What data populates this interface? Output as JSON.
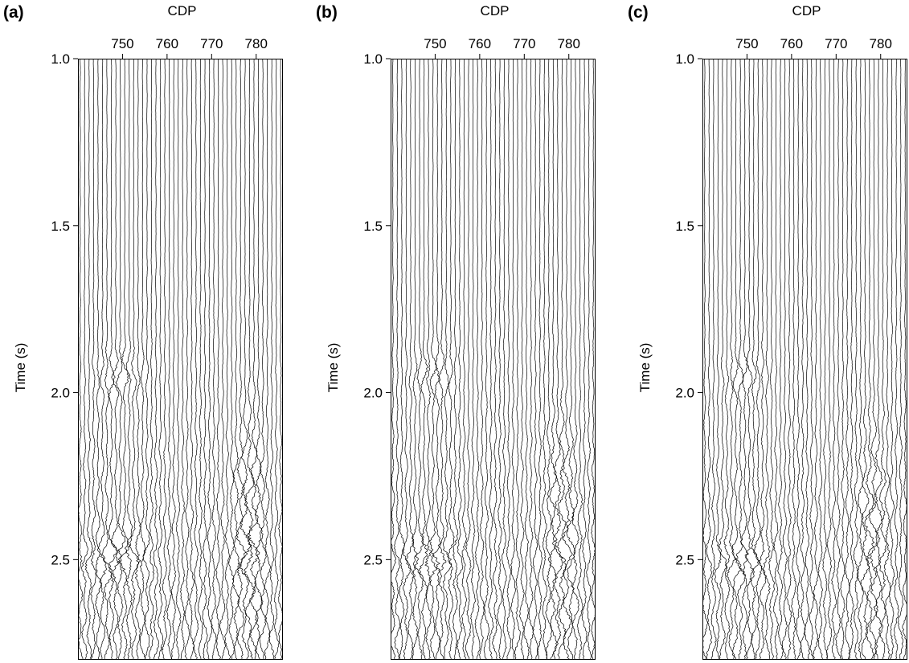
{
  "colors": {
    "trace": "#000000",
    "frame": "#000000",
    "background": "#ffffff"
  },
  "chart_data": [
    {
      "type": "seismic-wiggle",
      "panel_label": "(a)",
      "xlabel": "CDP",
      "ylabel": "Time (s)",
      "xticks": [
        750,
        760,
        770,
        780
      ],
      "xlim": [
        740,
        786
      ],
      "yticks": [
        1.0,
        1.5,
        2.0,
        2.5
      ],
      "ytick_labels": [
        "1.0",
        "1.5",
        "2.0",
        "2.5"
      ],
      "ylim": [
        1.0,
        2.8
      ],
      "grid": false,
      "anomalies": [
        {
          "cdp_range": [
            744,
            755
          ],
          "time_range": [
            1.85,
            2.05
          ],
          "strength": 0.75
        },
        {
          "cdp_range": [
            741,
            757
          ],
          "time_range": [
            2.4,
            2.6
          ],
          "strength": 0.9
        },
        {
          "cdp_range": [
            775,
            782
          ],
          "time_range": [
            2.05,
            2.8
          ],
          "strength": 0.85
        }
      ]
    },
    {
      "type": "seismic-wiggle",
      "panel_label": "(b)",
      "xlabel": "CDP",
      "ylabel": "Time (s)",
      "xticks": [
        750,
        760,
        770,
        780
      ],
      "xlim": [
        740,
        786
      ],
      "yticks": [
        1.0,
        1.5,
        2.0,
        2.5
      ],
      "ytick_labels": [
        "1.0",
        "1.5",
        "2.0",
        "2.5"
      ],
      "ylim": [
        1.0,
        2.8
      ],
      "grid": false,
      "anomalies": [
        {
          "cdp_range": [
            744,
            755
          ],
          "time_range": [
            1.85,
            2.05
          ],
          "strength": 0.7
        },
        {
          "cdp_range": [
            741,
            757
          ],
          "time_range": [
            2.4,
            2.6
          ],
          "strength": 0.85
        },
        {
          "cdp_range": [
            775,
            782
          ],
          "time_range": [
            2.05,
            2.8
          ],
          "strength": 0.8
        }
      ]
    },
    {
      "type": "seismic-wiggle",
      "panel_label": "(c)",
      "xlabel": "CDP",
      "ylabel": "Time (s)",
      "xticks": [
        750,
        760,
        770,
        780
      ],
      "xlim": [
        740,
        786
      ],
      "yticks": [
        1.0,
        1.5,
        2.0,
        2.5
      ],
      "ytick_labels": [
        "1.0",
        "1.5",
        "2.0",
        "2.5"
      ],
      "ylim": [
        1.0,
        2.8
      ],
      "grid": false,
      "anomalies": [
        {
          "cdp_range": [
            744,
            755
          ],
          "time_range": [
            1.85,
            2.05
          ],
          "strength": 0.55
        },
        {
          "cdp_range": [
            741,
            757
          ],
          "time_range": [
            2.4,
            2.6
          ],
          "strength": 0.7
        },
        {
          "cdp_range": [
            775,
            782
          ],
          "time_range": [
            2.05,
            2.8
          ],
          "strength": 0.75
        }
      ]
    }
  ]
}
